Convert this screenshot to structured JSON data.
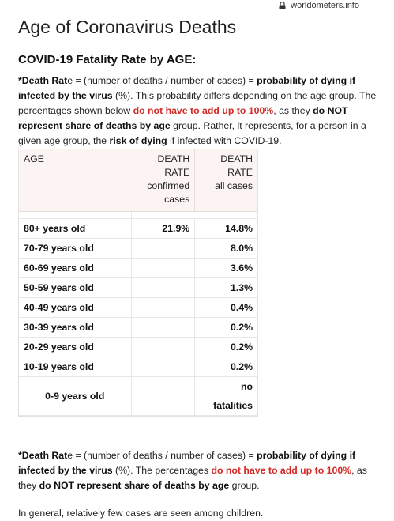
{
  "browser": {
    "url": "worldometers.info"
  },
  "page": {
    "title": "Age of Coronavirus Deaths",
    "section_heading": "COVID-19 Fatality Rate by AGE:"
  },
  "intro": {
    "star_label": "*Death Rat",
    "star_label_rest": "e",
    "formula": " = (number of deaths / number of cases) = ",
    "prob": "probability of dying if infected by the virus",
    "mid1": " (%). This probability differs depending on the age group. The percentages shown below ",
    "red1": "do not have to add up to 100%",
    "mid2": ", as they ",
    "bold2": "do NOT represent share of deaths by age",
    "mid3": " group. Rather, it represents, for a person in a given age group, the ",
    "bold3": "risk of dying",
    "end": " if infected with COVID-19."
  },
  "table": {
    "headers": {
      "age": "AGE",
      "confirmed": "DEATH RATE confirmed cases",
      "confirmed_l1": "DEATH RATE",
      "confirmed_l2": "confirmed",
      "confirmed_l3": "cases",
      "all": "DEATH RATE all cases",
      "all_l1": "DEATH RATE",
      "all_l2": "all cases"
    },
    "rows": [
      {
        "age": "80+ years old",
        "confirmed": "21.9%",
        "all": "14.8%"
      },
      {
        "age": "70-79 years old",
        "confirmed": "",
        "all": "8.0%"
      },
      {
        "age": "60-69 years old",
        "confirmed": "",
        "all": "3.6%"
      },
      {
        "age": "50-59 years old",
        "confirmed": "",
        "all": "1.3%"
      },
      {
        "age": "40-49 years old",
        "confirmed": "",
        "all": "0.4%"
      },
      {
        "age": "30-39 years old",
        "confirmed": "",
        "all": "0.2%"
      },
      {
        "age": "20-29 years old",
        "confirmed": "",
        "all": "0.2%"
      },
      {
        "age": "10-19 years old",
        "confirmed": "",
        "all": "0.2%"
      },
      {
        "age": "0-9 years old",
        "confirmed": "",
        "all": "no fatalities"
      }
    ]
  },
  "footnote": {
    "star_label": "*Death Rat",
    "star_label_rest": "e",
    "formula": " = (number of deaths / number of cases) = ",
    "prob": "probability of dying if infected by the virus",
    "mid1": " (%). The percentages ",
    "red1": "do not have to add up to 100%",
    "mid2": ", as they ",
    "bold2": "do NOT represent share of deaths by age",
    "end": " group."
  },
  "closing": {
    "text": "In general, relatively few cases are seen among children."
  },
  "colors": {
    "accent_red": "#d32a25",
    "header_bg": "#fbf4f2"
  },
  "icons": {
    "lock": "lock-icon"
  }
}
